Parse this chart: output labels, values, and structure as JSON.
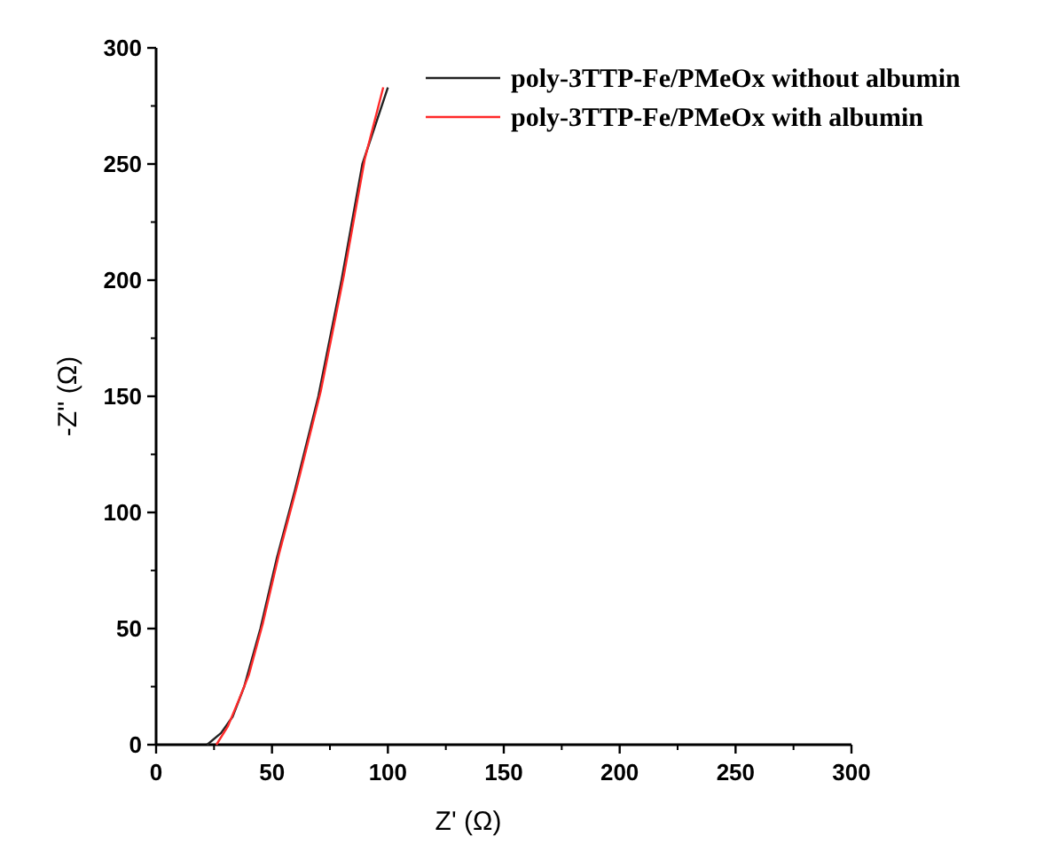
{
  "chart_data": {
    "type": "line",
    "xlabel": "Z' (Ω)",
    "ylabel": "-Z'' (Ω)",
    "xlim": [
      0,
      300
    ],
    "ylim": [
      0,
      300
    ],
    "xticks": [
      0,
      50,
      100,
      150,
      200,
      250,
      300
    ],
    "yticks": [
      0,
      50,
      100,
      150,
      200,
      250,
      300
    ],
    "legend": "top right",
    "grid": false,
    "marker": "none",
    "line_style": "solid",
    "series": [
      {
        "name": "poly-3TTP-Fe/PMeOx without albumin",
        "color": "#222222",
        "x": [
          22,
          28,
          33,
          38,
          45,
          52,
          60,
          70,
          80,
          89,
          100
        ],
        "values": [
          0,
          5,
          12,
          25,
          50,
          80,
          110,
          150,
          200,
          250,
          283
        ]
      },
      {
        "name": "poly-3TTP-Fe/PMeOx with albumin",
        "color": "#ff2a2a",
        "x": [
          26,
          31,
          36,
          40,
          46,
          53,
          61,
          71,
          81,
          90,
          98
        ],
        "values": [
          0,
          8,
          20,
          30,
          52,
          82,
          112,
          152,
          202,
          252,
          283
        ]
      }
    ]
  }
}
